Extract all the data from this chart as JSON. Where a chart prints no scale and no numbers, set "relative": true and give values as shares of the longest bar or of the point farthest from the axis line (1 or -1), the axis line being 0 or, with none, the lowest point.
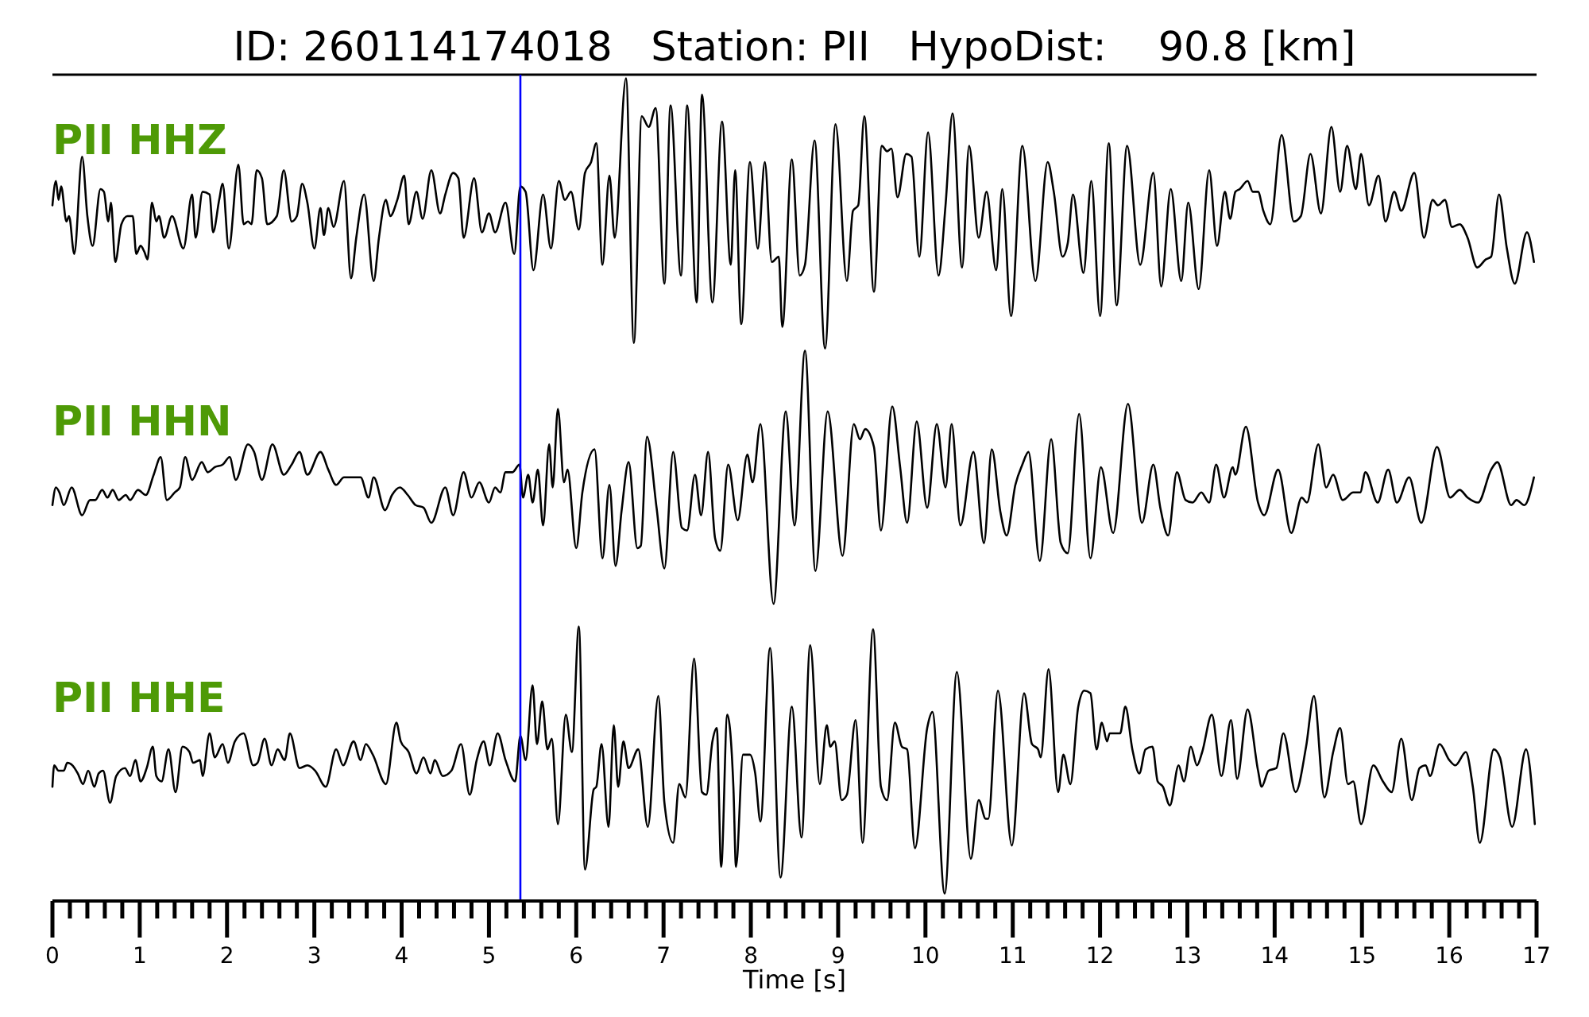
{
  "chart_data": [
    {
      "type": "line",
      "title": "ID: 260114174018   Station: PII   HypoDist:    90.8 [km]",
      "relative": true,
      "xlim": [
        0,
        17
      ],
      "tick_labels": false,
      "x": [
        0,
        0.04,
        0.07,
        0.1,
        0.16,
        0.19,
        0.25,
        0.34,
        0.4,
        0.46,
        0.55,
        0.59,
        0.64,
        0.67,
        0.72,
        0.79,
        0.86,
        0.92,
        0.96,
        1.01,
        1.05,
        1.09,
        1.14,
        1.19,
        1.22,
        1.28,
        1.37,
        1.5,
        1.6,
        1.64,
        1.72,
        1.8,
        1.84,
        1.91,
        1.95,
        2.02,
        2.13,
        2.19,
        2.24,
        2.28,
        2.34,
        2.4,
        2.46,
        2.57,
        2.65,
        2.74,
        2.8,
        2.86,
        2.92,
        3.0,
        3.07,
        3.11,
        3.16,
        3.22,
        3.34,
        3.42,
        3.48,
        3.57,
        3.68,
        3.74,
        3.82,
        3.87,
        3.95,
        4.03,
        4.08,
        4.17,
        4.24,
        4.34,
        4.44,
        4.5,
        4.59,
        4.65,
        4.71,
        4.83,
        4.92,
        5.0,
        5.07,
        5.19,
        5.29,
        5.36,
        5.42,
        5.51,
        5.62,
        5.71,
        5.8,
        5.87,
        5.94,
        6.03,
        6.1,
        6.17,
        6.23,
        6.3,
        6.38,
        6.44,
        6.57,
        6.66,
        6.75,
        6.83,
        6.91,
        7.01,
        7.08,
        7.2,
        7.27,
        7.38,
        7.44,
        7.56,
        7.67,
        7.77,
        7.82,
        7.89,
        7.99,
        8.08,
        8.16,
        8.24,
        8.32,
        8.36,
        8.47,
        8.56,
        8.62,
        8.73,
        8.85,
        8.97,
        9.1,
        9.17,
        9.23,
        9.3,
        9.41,
        9.5,
        9.56,
        9.61,
        9.68,
        9.78,
        9.84,
        9.93,
        10.03,
        10.15,
        10.23,
        10.31,
        10.42,
        10.5,
        10.61,
        10.7,
        10.81,
        10.88,
        10.98,
        11.11,
        11.26,
        11.4,
        11.47,
        11.57,
        11.63,
        11.69,
        11.81,
        11.9,
        12.0,
        12.1,
        12.19,
        12.31,
        12.46,
        12.61,
        12.7,
        12.81,
        12.93,
        13.01,
        13.13,
        13.25,
        13.34,
        13.43,
        13.49,
        13.55,
        13.6,
        13.69,
        13.75,
        13.81,
        13.87,
        13.95,
        14.08,
        14.22,
        14.3,
        14.41,
        14.53,
        14.65,
        14.75,
        14.83,
        14.93,
        14.99,
        15.08,
        15.19,
        15.27,
        15.37,
        15.45,
        15.6,
        15.71,
        15.81,
        15.87,
        15.95,
        16.03,
        16.12,
        16.21,
        16.32,
        16.42,
        16.48,
        16.57,
        16.66,
        16.75,
        16.89,
        16.97
      ],
      "series": [
        {
          "name": "PII HHZ",
          "color": "#000000",
          "values": [
            0.53,
            0.62,
            0.55,
            0.6,
            0.47,
            0.49,
            0.35,
            0.71,
            0.49,
            0.38,
            0.59,
            0.58,
            0.47,
            0.54,
            0.32,
            0.46,
            0.49,
            0.49,
            0.35,
            0.38,
            0.36,
            0.33,
            0.54,
            0.47,
            0.49,
            0.41,
            0.49,
            0.37,
            0.57,
            0.41,
            0.58,
            0.57,
            0.43,
            0.55,
            0.61,
            0.37,
            0.68,
            0.46,
            0.47,
            0.46,
            0.66,
            0.63,
            0.46,
            0.49,
            0.66,
            0.47,
            0.49,
            0.61,
            0.54,
            0.37,
            0.52,
            0.42,
            0.52,
            0.45,
            0.62,
            0.26,
            0.41,
            0.57,
            0.25,
            0.41,
            0.55,
            0.49,
            0.55,
            0.64,
            0.46,
            0.58,
            0.48,
            0.66,
            0.5,
            0.57,
            0.65,
            0.63,
            0.41,
            0.63,
            0.43,
            0.5,
            0.43,
            0.54,
            0.35,
            0.6,
            0.58,
            0.29,
            0.57,
            0.37,
            0.62,
            0.55,
            0.58,
            0.44,
            0.65,
            0.69,
            0.76,
            0.31,
            0.64,
            0.41,
            1,
            0.02,
            0.86,
            0.82,
            0.89,
            0.24,
            0.9,
            0.27,
            0.9,
            0.17,
            0.94,
            0.17,
            0.84,
            0.31,
            0.66,
            0.09,
            0.69,
            0.37,
            0.69,
            0.32,
            0.34,
            0.08,
            0.7,
            0.27,
            0.31,
            0.77,
            0,
            0.83,
            0.25,
            0.51,
            0.53,
            0.86,
            0.21,
            0.75,
            0.73,
            0.74,
            0.56,
            0.72,
            0.71,
            0.34,
            0.8,
            0.27,
            0.53,
            0.87,
            0.3,
            0.75,
            0.41,
            0.58,
            0.29,
            0.59,
            0.12,
            0.75,
            0.25,
            0.69,
            0.58,
            0.34,
            0.39,
            0.57,
            0.28,
            0.62,
            0.12,
            0.76,
            0.16,
            0.75,
            0.31,
            0.65,
            0.23,
            0.59,
            0.25,
            0.54,
            0.22,
            0.66,
            0.38,
            0.58,
            0.48,
            0.58,
            0.59,
            0.62,
            0.58,
            0.58,
            0.51,
            0.46,
            0.79,
            0.47,
            0.49,
            0.72,
            0.5,
            0.82,
            0.58,
            0.75,
            0.59,
            0.72,
            0.53,
            0.64,
            0.47,
            0.58,
            0.51,
            0.65,
            0.41,
            0.55,
            0.53,
            0.55,
            0.45,
            0.46,
            0.41,
            0.3,
            0.33,
            0.34,
            0.57,
            0.37,
            0.24,
            0.43,
            0.32
          ]
        }
      ],
      "ref_lines": [
        {
          "axis": "x",
          "value": 5.36,
          "color": "#0000ff"
        }
      ]
    },
    {
      "type": "line",
      "relative": true,
      "xlim": [
        0,
        17
      ],
      "tick_labels": false,
      "x": [
        0,
        0.04,
        0.08,
        0.13,
        0.22,
        0.34,
        0.43,
        0.49,
        0.57,
        0.63,
        0.69,
        0.76,
        0.84,
        0.89,
        0.98,
        1.07,
        1.16,
        1.24,
        1.31,
        1.4,
        1.46,
        1.52,
        1.6,
        1.71,
        1.78,
        1.86,
        1.95,
        2.03,
        2.1,
        2.24,
        2.31,
        2.4,
        2.52,
        2.65,
        2.74,
        2.83,
        2.92,
        3.07,
        3.16,
        3.25,
        3.34,
        3.43,
        3.53,
        3.62,
        3.68,
        3.81,
        3.89,
        3.98,
        4.07,
        4.16,
        4.25,
        4.34,
        4.5,
        4.59,
        4.71,
        4.8,
        4.89,
        5.0,
        5.07,
        5.13,
        5.19,
        5.27,
        5.35,
        5.39,
        5.45,
        5.5,
        5.56,
        5.62,
        5.69,
        5.73,
        5.79,
        5.86,
        5.9,
        6.0,
        6.07,
        6.21,
        6.3,
        6.38,
        6.45,
        6.52,
        6.6,
        6.7,
        6.74,
        6.81,
        6.92,
        7.01,
        7.11,
        7.21,
        7.27,
        7.36,
        7.43,
        7.51,
        7.59,
        7.65,
        7.74,
        7.85,
        7.96,
        8.02,
        8.11,
        8.26,
        8.4,
        8.5,
        8.62,
        8.74,
        8.88,
        9.05,
        9.18,
        9.25,
        9.31,
        9.41,
        9.49,
        9.62,
        9.71,
        9.79,
        9.9,
        10.02,
        10.13,
        10.23,
        10.3,
        10.4,
        10.55,
        10.67,
        10.76,
        10.86,
        10.93,
        11.03,
        11.11,
        11.18,
        11.31,
        11.44,
        11.55,
        11.63,
        11.76,
        11.89,
        12.01,
        12.15,
        12.32,
        12.48,
        12.61,
        12.69,
        12.78,
        12.88,
        12.98,
        13.06,
        13.16,
        13.25,
        13.33,
        13.42,
        13.52,
        13.55,
        13.67,
        13.81,
        13.88,
        14.04,
        14.19,
        14.31,
        14.37,
        14.5,
        14.59,
        14.67,
        14.78,
        14.9,
        14.98,
        15.04,
        15.18,
        15.3,
        15.4,
        15.54,
        15.68,
        15.86,
        16.01,
        16.12,
        16.21,
        16.33,
        16.48,
        16.55,
        16.71,
        16.77,
        16.86,
        16.97
      ],
      "series": [
        {
          "name": "PII HHN",
          "color": "#000000",
          "values": [
            0.39,
            0.46,
            0.44,
            0.39,
            0.46,
            0.35,
            0.41,
            0.41,
            0.45,
            0.42,
            0.45,
            0.41,
            0.43,
            0.41,
            0.45,
            0.43,
            0.51,
            0.58,
            0.41,
            0.44,
            0.46,
            0.58,
            0.49,
            0.56,
            0.52,
            0.54,
            0.55,
            0.58,
            0.49,
            0.63,
            0.6,
            0.49,
            0.63,
            0.51,
            0.55,
            0.6,
            0.51,
            0.6,
            0.53,
            0.47,
            0.5,
            0.5,
            0.5,
            0.42,
            0.5,
            0.37,
            0.43,
            0.46,
            0.43,
            0.39,
            0.38,
            0.32,
            0.46,
            0.35,
            0.52,
            0.42,
            0.48,
            0.4,
            0.46,
            0.44,
            0.52,
            0.52,
            0.55,
            0.42,
            0.51,
            0.4,
            0.53,
            0.31,
            0.63,
            0.46,
            0.77,
            0.48,
            0.53,
            0.22,
            0.44,
            0.61,
            0.18,
            0.47,
            0.15,
            0.37,
            0.56,
            0.22,
            0.23,
            0.66,
            0.38,
            0.14,
            0.6,
            0.3,
            0.29,
            0.51,
            0.35,
            0.6,
            0.26,
            0.21,
            0.55,
            0.33,
            0.59,
            0.48,
            0.71,
            0,
            0.76,
            0.31,
            1,
            0.13,
            0.76,
            0.19,
            0.71,
            0.65,
            0.69,
            0.62,
            0.29,
            0.78,
            0.54,
            0.32,
            0.72,
            0.38,
            0.71,
            0.46,
            0.71,
            0.31,
            0.6,
            0.24,
            0.61,
            0.36,
            0.27,
            0.47,
            0.55,
            0.6,
            0.17,
            0.65,
            0.24,
            0.2,
            0.75,
            0.18,
            0.54,
            0.28,
            0.79,
            0.32,
            0.55,
            0.38,
            0.27,
            0.52,
            0.41,
            0.4,
            0.44,
            0.4,
            0.55,
            0.42,
            0.54,
            0.51,
            0.7,
            0.4,
            0.35,
            0.53,
            0.28,
            0.42,
            0.4,
            0.63,
            0.46,
            0.51,
            0.41,
            0.44,
            0.44,
            0.52,
            0.4,
            0.53,
            0.4,
            0.5,
            0.32,
            0.62,
            0.42,
            0.45,
            0.42,
            0.4,
            0.53,
            0.56,
            0.39,
            0.41,
            0.39,
            0.5
          ]
        }
      ],
      "ref_lines": [
        {
          "axis": "x",
          "value": 5.36,
          "color": "#0000ff"
        }
      ]
    },
    {
      "type": "line",
      "relative": true,
      "xlim": [
        0,
        17
      ],
      "xlabel": "Time [s]",
      "xticks": [
        0,
        {
          "value": 0.2,
          "label": null
        },
        {
          "value": 0.4,
          "label": null
        },
        {
          "value": 0.6,
          "label": null
        },
        {
          "value": 0.8,
          "label": null
        },
        1,
        {
          "value": 1.2,
          "label": null
        },
        {
          "value": 1.4,
          "label": null
        },
        {
          "value": 1.6,
          "label": null
        },
        {
          "value": 1.8,
          "label": null
        },
        2,
        {
          "value": 2.2,
          "label": null
        },
        {
          "value": 2.4,
          "label": null
        },
        {
          "value": 2.6,
          "label": null
        },
        {
          "value": 2.8,
          "label": null
        },
        3,
        {
          "value": 3.2,
          "label": null
        },
        {
          "value": 3.4,
          "label": null
        },
        {
          "value": 3.6,
          "label": null
        },
        {
          "value": 3.8,
          "label": null
        },
        4,
        {
          "value": 4.2,
          "label": null
        },
        {
          "value": 4.4,
          "label": null
        },
        {
          "value": 4.6,
          "label": null
        },
        {
          "value": 4.8,
          "label": null
        },
        5,
        {
          "value": 5.2,
          "label": null
        },
        {
          "value": 5.4,
          "label": null
        },
        {
          "value": 5.6,
          "label": null
        },
        {
          "value": 5.8,
          "label": null
        },
        6,
        {
          "value": 6.2,
          "label": null
        },
        {
          "value": 6.4,
          "label": null
        },
        {
          "value": 6.6,
          "label": null
        },
        {
          "value": 6.8,
          "label": null
        },
        7,
        {
          "value": 7.2,
          "label": null
        },
        {
          "value": 7.4,
          "label": null
        },
        {
          "value": 7.6,
          "label": null
        },
        {
          "value": 7.8,
          "label": null
        },
        8,
        {
          "value": 8.2,
          "label": null
        },
        {
          "value": 8.4,
          "label": null
        },
        {
          "value": 8.6,
          "label": null
        },
        {
          "value": 8.8,
          "label": null
        },
        9,
        {
          "value": 9.2,
          "label": null
        },
        {
          "value": 9.4,
          "label": null
        },
        {
          "value": 9.6,
          "label": null
        },
        {
          "value": 9.8,
          "label": null
        },
        10,
        {
          "value": 10.2,
          "label": null
        },
        {
          "value": 10.4,
          "label": null
        },
        {
          "value": 10.6,
          "label": null
        },
        {
          "value": 10.8,
          "label": null
        },
        11,
        {
          "value": 11.2,
          "label": null
        },
        {
          "value": 11.4,
          "label": null
        },
        {
          "value": 11.6,
          "label": null
        },
        {
          "value": 11.8,
          "label": null
        },
        12,
        {
          "value": 12.2,
          "label": null
        },
        {
          "value": 12.4,
          "label": null
        },
        {
          "value": 12.6,
          "label": null
        },
        {
          "value": 12.8,
          "label": null
        },
        13,
        {
          "value": 13.2,
          "label": null
        },
        {
          "value": 13.4,
          "label": null
        },
        {
          "value": 13.6,
          "label": null
        },
        {
          "value": 13.8,
          "label": null
        },
        14,
        {
          "value": 14.2,
          "label": null
        },
        {
          "value": 14.4,
          "label": null
        },
        {
          "value": 14.6,
          "label": null
        },
        {
          "value": 14.8,
          "label": null
        },
        15,
        {
          "value": 15.2,
          "label": null
        },
        {
          "value": 15.4,
          "label": null
        },
        {
          "value": 15.6,
          "label": null
        },
        {
          "value": 15.8,
          "label": null
        },
        16,
        {
          "value": 16.2,
          "label": null
        },
        {
          "value": 16.4,
          "label": null
        },
        {
          "value": 16.6,
          "label": null
        },
        {
          "value": 16.8,
          "label": null
        },
        17
      ],
      "x": [
        0,
        0.02,
        0.07,
        0.13,
        0.17,
        0.23,
        0.29,
        0.35,
        0.41,
        0.48,
        0.53,
        0.58,
        0.66,
        0.73,
        0.83,
        0.89,
        0.95,
        1.01,
        1.08,
        1.15,
        1.19,
        1.25,
        1.33,
        1.41,
        1.49,
        1.57,
        1.61,
        1.69,
        1.72,
        1.8,
        1.86,
        1.95,
        2.01,
        2.09,
        2.19,
        2.3,
        2.35,
        2.43,
        2.51,
        2.58,
        2.66,
        2.72,
        2.83,
        2.92,
        3.01,
        3.13,
        3.25,
        3.33,
        3.45,
        3.53,
        3.59,
        3.67,
        3.82,
        3.94,
        3.99,
        4.08,
        4.17,
        4.25,
        4.33,
        4.38,
        4.47,
        4.57,
        4.68,
        4.78,
        4.86,
        4.94,
        5.01,
        5.1,
        5.19,
        5.3,
        5.36,
        5.42,
        5.5,
        5.55,
        5.61,
        5.67,
        5.72,
        5.79,
        5.88,
        5.95,
        6.03,
        6.1,
        6.2,
        6.23,
        6.29,
        6.37,
        6.43,
        6.48,
        6.54,
        6.6,
        6.71,
        6.82,
        6.94,
        7.01,
        7.11,
        7.18,
        7.25,
        7.35,
        7.44,
        7.49,
        7.56,
        7.61,
        7.66,
        7.73,
        7.8,
        7.83,
        7.91,
        7.99,
        8.05,
        8.11,
        8.22,
        8.34,
        8.47,
        8.58,
        8.68,
        8.79,
        8.87,
        8.91,
        8.96,
        9.04,
        9.1,
        9.2,
        9.28,
        9.4,
        9.49,
        9.56,
        9.65,
        9.73,
        9.79,
        9.88,
        10.02,
        10.08,
        10.22,
        10.36,
        10.52,
        10.61,
        10.69,
        10.72,
        10.83,
        10.99,
        11.13,
        11.22,
        11.29,
        11.32,
        11.41,
        11.52,
        11.58,
        11.66,
        11.75,
        11.82,
        11.89,
        11.96,
        12.02,
        12.08,
        12.11,
        12.23,
        12.29,
        12.37,
        12.45,
        12.52,
        12.6,
        12.66,
        12.72,
        12.8,
        12.9,
        12.96,
        13.04,
        13.11,
        13.17,
        13.28,
        13.39,
        13.5,
        13.57,
        13.69,
        13.81,
        13.85,
        13.93,
        14.02,
        14.1,
        14.24,
        14.36,
        14.45,
        14.57,
        14.67,
        14.75,
        14.84,
        14.9,
        14.99,
        15.13,
        15.24,
        15.34,
        15.45,
        15.57,
        15.66,
        15.73,
        15.78,
        15.89,
        16.0,
        16.07,
        16.19,
        16.27,
        16.35,
        16.51,
        16.58,
        16.72,
        16.88,
        16.98
      ],
      "series": [
        {
          "name": "PII HHE",
          "color": "#000000",
          "values": [
            0.4,
            0.48,
            0.46,
            0.46,
            0.49,
            0.48,
            0.45,
            0.41,
            0.46,
            0.4,
            0.45,
            0.46,
            0.34,
            0.44,
            0.47,
            0.44,
            0.5,
            0.42,
            0.47,
            0.55,
            0.44,
            0.42,
            0.54,
            0.38,
            0.55,
            0.53,
            0.49,
            0.5,
            0.44,
            0.6,
            0.51,
            0.56,
            0.49,
            0.57,
            0.6,
            0.48,
            0.49,
            0.58,
            0.48,
            0.54,
            0.5,
            0.6,
            0.47,
            0.48,
            0.46,
            0.4,
            0.54,
            0.48,
            0.57,
            0.5,
            0.56,
            0.52,
            0.41,
            0.64,
            0.57,
            0.53,
            0.45,
            0.51,
            0.45,
            0.5,
            0.44,
            0.46,
            0.56,
            0.37,
            0.5,
            0.57,
            0.48,
            0.6,
            0.5,
            0.42,
            0.59,
            0.5,
            0.78,
            0.56,
            0.72,
            0.54,
            0.58,
            0.26,
            0.67,
            0.53,
            1,
            0.09,
            0.39,
            0.4,
            0.56,
            0.25,
            0.63,
            0.4,
            0.57,
            0.47,
            0.54,
            0.25,
            0.74,
            0.34,
            0.19,
            0.41,
            0.36,
            0.88,
            0.38,
            0.37,
            0.57,
            0.62,
            0.1,
            0.67,
            0.4,
            0.1,
            0.52,
            0.52,
            0.45,
            0.27,
            0.92,
            0.06,
            0.7,
            0.21,
            0.93,
            0.41,
            0.63,
            0.55,
            0.57,
            0.35,
            0.37,
            0.65,
            0.19,
            0.99,
            0.4,
            0.35,
            0.64,
            0.55,
            0.54,
            0.17,
            0.62,
            0.68,
            0,
            0.83,
            0.13,
            0.35,
            0.28,
            0.28,
            0.76,
            0.18,
            0.75,
            0.56,
            0.54,
            0.51,
            0.84,
            0.38,
            0.52,
            0.41,
            0.7,
            0.76,
            0.75,
            0.54,
            0.64,
            0.57,
            0.6,
            0.6,
            0.7,
            0.54,
            0.45,
            0.54,
            0.55,
            0.42,
            0.4,
            0.33,
            0.48,
            0.42,
            0.55,
            0.48,
            0.53,
            0.67,
            0.44,
            0.65,
            0.43,
            0.69,
            0.46,
            0.4,
            0.46,
            0.47,
            0.6,
            0.38,
            0.55,
            0.74,
            0.36,
            0.53,
            0.62,
            0.41,
            0.42,
            0.26,
            0.48,
            0.42,
            0.38,
            0.58,
            0.35,
            0.47,
            0.48,
            0.44,
            0.56,
            0.5,
            0.48,
            0.53,
            0.4,
            0.19,
            0.54,
            0.51,
            0.25,
            0.54,
            0.26
          ]
        }
      ],
      "ref_lines": [
        {
          "axis": "x",
          "value": 5.36,
          "color": "#0000ff"
        }
      ]
    }
  ]
}
